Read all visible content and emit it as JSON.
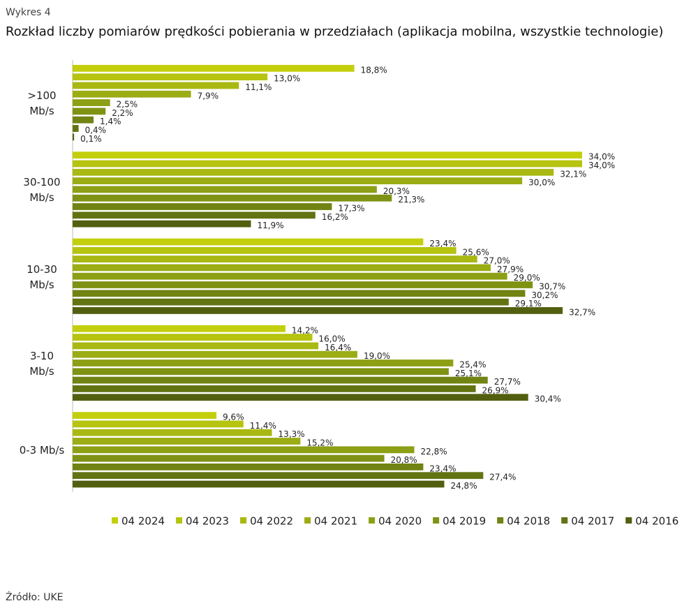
{
  "chart_data": {
    "type": "hbar",
    "title": "Wykres 4",
    "subtitle": "Rozkład liczby pomiarów prędkości pobierania w przedziałach (aplikacja mobilna, wszystkie technologie)",
    "source": "Źródło: UKE",
    "categories": [
      ">100\nMb/s",
      "30-100\nMb/s",
      "10-30\nMb/s",
      "3-10\nMb/s",
      "0-3 Mb/s"
    ],
    "series": [
      {
        "name": "04 2024",
        "color": "#c3cf0d",
        "values": [
          18.8,
          34.0,
          23.4,
          14.2,
          9.6
        ],
        "value_labels": [
          "18,8%",
          "34,0%",
          "23,4%",
          "14,2%",
          "9,6%"
        ]
      },
      {
        "name": "04 2023",
        "color": "#b6c30f",
        "values": [
          13.0,
          34.0,
          25.6,
          16.0,
          11.4
        ],
        "value_labels": [
          "13,0%",
          "34,0%",
          "25,6%",
          "16,0%",
          "11,4%"
        ]
      },
      {
        "name": "04 2022",
        "color": "#a9b812",
        "values": [
          11.1,
          32.1,
          27.0,
          16.4,
          13.3
        ],
        "value_labels": [
          "11,1%",
          "32,1%",
          "27,0%",
          "16,4%",
          "13,3%"
        ]
      },
      {
        "name": "04 2021",
        "color": "#9bac14",
        "values": [
          7.9,
          30.0,
          27.9,
          19.0,
          15.2
        ],
        "value_labels": [
          "7,9%",
          "30,0%",
          "27,9%",
          "19,0%",
          "15,2%"
        ]
      },
      {
        "name": "04 2020",
        "color": "#8d9f14",
        "values": [
          2.5,
          20.3,
          29.0,
          25.4,
          22.8
        ],
        "value_labels": [
          "2,5%",
          "20,3%",
          "29,0%",
          "25,4%",
          "22,8%"
        ]
      },
      {
        "name": "04 2019",
        "color": "#809214",
        "values": [
          2.2,
          21.3,
          30.7,
          25.1,
          20.8
        ],
        "value_labels": [
          "2,2%",
          "21,3%",
          "30,7%",
          "25,1%",
          "20,8%"
        ]
      },
      {
        "name": "04 2018",
        "color": "#718313",
        "values": [
          1.4,
          17.3,
          30.2,
          27.7,
          23.4
        ],
        "value_labels": [
          "1,4%",
          "17,3%",
          "30,2%",
          "27,7%",
          "23,4%"
        ]
      },
      {
        "name": "04 2017",
        "color": "#627312",
        "values": [
          0.4,
          16.2,
          29.1,
          26.9,
          27.4
        ],
        "value_labels": [
          "0,4%",
          "16,2%",
          "29,1%",
          "26,9%",
          "27,4%"
        ]
      },
      {
        "name": "04 2016",
        "color": "#535f10",
        "values": [
          0.1,
          11.9,
          32.7,
          30.4,
          24.8
        ],
        "value_labels": [
          "0,1%",
          "11,9%",
          "32,7%",
          "30,4%",
          "24,8%"
        ]
      }
    ]
  }
}
